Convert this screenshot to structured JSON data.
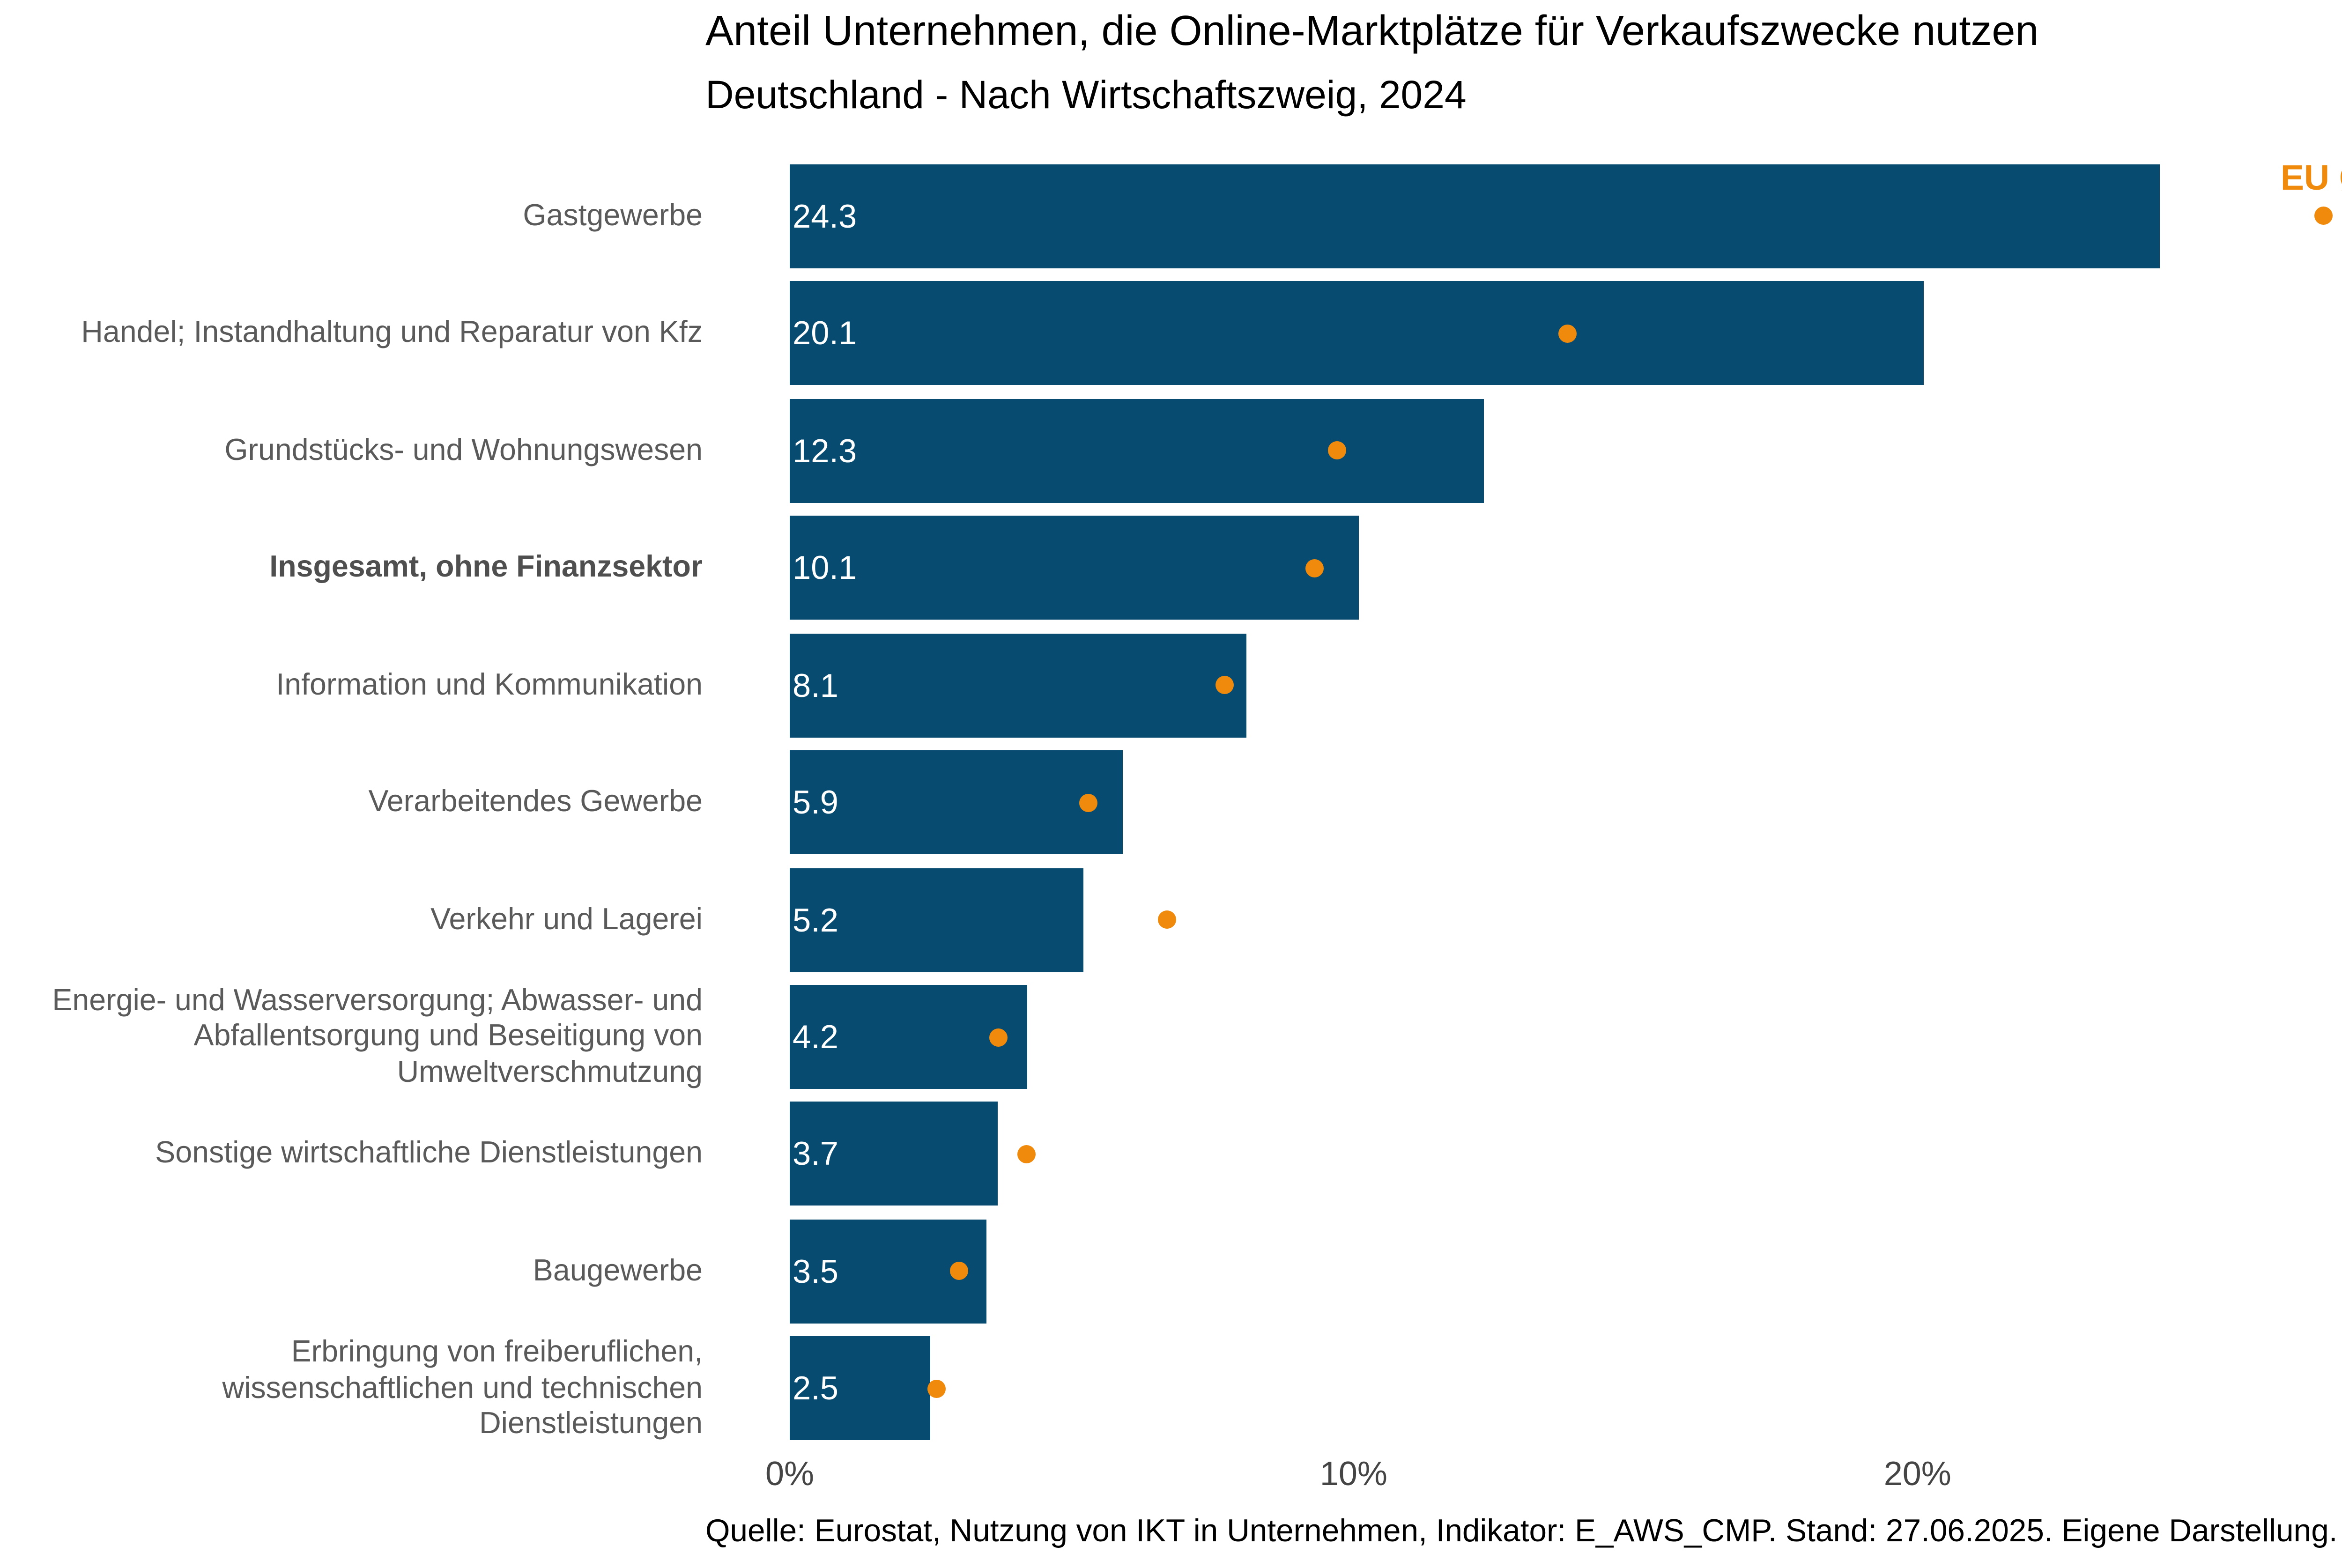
{
  "chart": {
    "title": "Anteil Unternehmen, die Online-Marktplätze für Verkaufszwecke nutzen",
    "subtitle": "Deutschland - Nach Wirtschaftszweig, 2024",
    "legend_eu_label": "EU Ø",
    "footer": "Quelle: Eurostat, Nutzung von IKT in Unternehmen, Indikator: E_AWS_CMP. Stand: 27.06.2025. Eigene Darstellung.",
    "colors": {
      "bar": "#084B70",
      "eu_dot": "#EF8A0C",
      "label": "#5A5A5A",
      "value_text": "#FFFFFF",
      "tick": "#454545"
    }
  },
  "chart_data": {
    "type": "bar",
    "orientation": "horizontal",
    "unit": "%",
    "title": "Anteil Unternehmen, die Online-Marktplätze für Verkaufszwecke nutzen",
    "subtitle": "Deutschland - Nach Wirtschaftszweig, 2024",
    "xlim": [
      0,
      28.9
    ],
    "x_ticks": [
      {
        "value": 0,
        "label": "0%"
      },
      {
        "value": 10,
        "label": "10%"
      },
      {
        "value": 20,
        "label": "20%"
      }
    ],
    "grid": false,
    "legend_position": "top-right",
    "categories": [
      "Gastgewerbe",
      "Handel; Instandhaltung und Reparatur von Kfz",
      "Grundstücks- und Wohnungswesen",
      "Insgesamt, ohne Finanzsektor",
      "Information und Kommunikation",
      "Verarbeitendes Gewerbe",
      "Verkehr und Lagerei",
      "Energie- und Wasserversorgung; Abwasser- und Abfallentsorgung und Beseitigung von Umweltverschmutzung",
      "Sonstige wirtschaftliche Dienstleistungen",
      "Baugewerbe",
      "Erbringung von freiberuflichen, wissenschaftlichen und technischen Dienstleistungen"
    ],
    "label_lines": [
      [
        "Gastgewerbe"
      ],
      [
        "Handel; Instandhaltung und Reparatur von Kfz"
      ],
      [
        "Grundstücks- und Wohnungswesen"
      ],
      [
        "Insgesamt, ohne Finanzsektor"
      ],
      [
        "Information und Kommunikation"
      ],
      [
        "Verarbeitendes Gewerbe"
      ],
      [
        "Verkehr und Lagerei"
      ],
      [
        "Energie- und Wasserversorgung; Abwasser- und",
        "Abfallentsorgung und Beseitigung von",
        "Umweltverschmutzung"
      ],
      [
        "Sonstige wirtschaftliche Dienstleistungen"
      ],
      [
        "Baugewerbe"
      ],
      [
        "Erbringung von freiberuflichen,",
        "wissenschaftlichen und technischen",
        "Dienstleistungen"
      ]
    ],
    "bold_category_index": 3,
    "series": [
      {
        "name": "Deutschland",
        "style": "bar",
        "values": [
          24.3,
          20.1,
          12.3,
          10.1,
          8.1,
          5.9,
          5.2,
          4.2,
          3.7,
          3.5,
          2.5
        ]
      },
      {
        "name": "EU Ø",
        "style": "dot",
        "values": [
          27.2,
          13.8,
          9.7,
          9.3,
          7.7,
          5.3,
          6.7,
          3.7,
          4.2,
          3.0,
          2.6
        ]
      }
    ],
    "value_labels_shown_for": "Deutschland"
  }
}
